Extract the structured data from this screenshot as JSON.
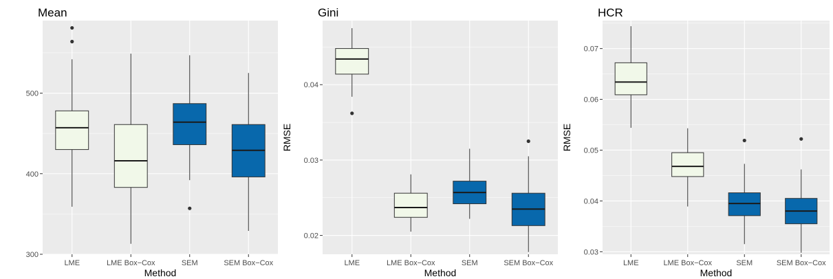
{
  "chart_data": [
    {
      "type": "box",
      "title": "Mean",
      "xlabel": "Method",
      "ylabel": "",
      "ylim": [
        300,
        590
      ],
      "yticks": [
        300,
        400,
        500
      ],
      "categories": [
        "LME",
        "LME Box−Cox",
        "SEM",
        "SEM Box−Cox"
      ],
      "boxes": [
        {
          "min": 359,
          "q1": 430,
          "median": 457,
          "q3": 478,
          "max": 542,
          "outliers": [
            564,
            581
          ]
        },
        {
          "min": 313,
          "q1": 383,
          "median": 416,
          "q3": 461,
          "max": 549,
          "outliers": []
        },
        {
          "min": 392,
          "q1": 436,
          "median": 464,
          "q3": 487,
          "max": 547,
          "outliers": [
            357
          ]
        },
        {
          "min": 329,
          "q1": 396,
          "median": 429,
          "q3": 461,
          "max": 525,
          "outliers": []
        }
      ]
    },
    {
      "type": "box",
      "title": "Gini",
      "xlabel": "Method",
      "ylabel": "RMSE",
      "ylim": [
        0.0175,
        0.0485
      ],
      "yticks": [
        0.02,
        0.03,
        0.04
      ],
      "categories": [
        "LME",
        "LME Box−Cox",
        "SEM",
        "SEM Box−Cox"
      ],
      "boxes": [
        {
          "min": 0.0384,
          "q1": 0.0414,
          "median": 0.0434,
          "q3": 0.0448,
          "max": 0.0475,
          "outliers": [
            0.0362
          ]
        },
        {
          "min": 0.0205,
          "q1": 0.0224,
          "median": 0.0237,
          "q3": 0.0256,
          "max": 0.0281,
          "outliers": []
        },
        {
          "min": 0.0222,
          "q1": 0.0242,
          "median": 0.0257,
          "q3": 0.0272,
          "max": 0.0315,
          "outliers": []
        },
        {
          "min": 0.0178,
          "q1": 0.0213,
          "median": 0.0235,
          "q3": 0.0256,
          "max": 0.0305,
          "outliers": [
            0.0325
          ]
        }
      ]
    },
    {
      "type": "box",
      "title": "HCR",
      "xlabel": "Method",
      "ylabel": "RMSE",
      "ylim": [
        0.0295,
        0.0755
      ],
      "yticks": [
        0.03,
        0.04,
        0.05,
        0.06,
        0.07
      ],
      "categories": [
        "LME",
        "LME Box−Cox",
        "SEM",
        "SEM Box−Cox"
      ],
      "boxes": [
        {
          "min": 0.0544,
          "q1": 0.0609,
          "median": 0.0634,
          "q3": 0.0672,
          "max": 0.0744,
          "outliers": []
        },
        {
          "min": 0.0389,
          "q1": 0.0448,
          "median": 0.0468,
          "q3": 0.0495,
          "max": 0.0543,
          "outliers": []
        },
        {
          "min": 0.0315,
          "q1": 0.0371,
          "median": 0.0395,
          "q3": 0.0416,
          "max": 0.0473,
          "outliers": [
            0.0519
          ]
        },
        {
          "min": 0.0298,
          "q1": 0.0355,
          "median": 0.038,
          "q3": 0.0405,
          "max": 0.0462,
          "outliers": [
            0.0522
          ]
        }
      ]
    }
  ],
  "colors": {
    "panel_background": "#ebebeb",
    "grid": "#ffffff",
    "fill_lme": "#f1f8e9",
    "fill_sem": "#0868ac",
    "box_outline": "#333333",
    "tick_text": "#4d4d4d"
  }
}
